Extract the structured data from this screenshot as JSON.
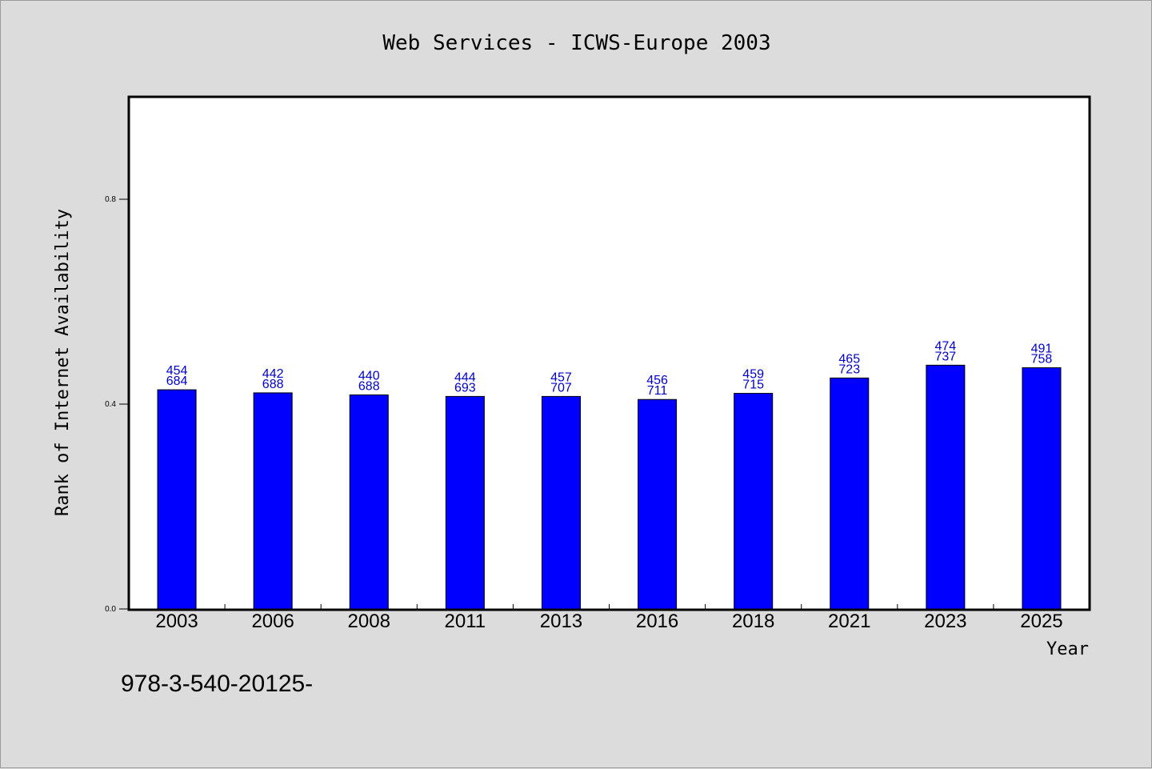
{
  "chart_data": {
    "type": "bar",
    "title": "Web Services - ICWS-Europe 2003",
    "xlabel": "Year",
    "ylabel": "Rank of Internet Availability",
    "ylim": [
      0,
      1.0
    ],
    "yticks": [
      "0.0",
      "0.4",
      "0.8"
    ],
    "categories": [
      "2003",
      "2006",
      "2008",
      "2011",
      "2013",
      "2016",
      "2018",
      "2021",
      "2023",
      "2025"
    ],
    "values": [
      0.428,
      0.422,
      0.418,
      0.415,
      0.415,
      0.409,
      0.421,
      0.451,
      0.476,
      0.471
    ],
    "data_labels": [
      [
        "454",
        "684"
      ],
      [
        "442",
        "688"
      ],
      [
        "440",
        "688"
      ],
      [
        "444",
        "693"
      ],
      [
        "457",
        "707"
      ],
      [
        "456",
        "711"
      ],
      [
        "459",
        "715"
      ],
      [
        "465",
        "723"
      ],
      [
        "474",
        "737"
      ],
      [
        "491",
        "758"
      ]
    ],
    "grid": false,
    "colors": {
      "bar": "#0000ff",
      "label": "#0000cc",
      "plot_bg": "#ffffff",
      "page_bg": "#dcdcdc"
    }
  },
  "footer": {
    "text": "978-3-540-20125-"
  }
}
